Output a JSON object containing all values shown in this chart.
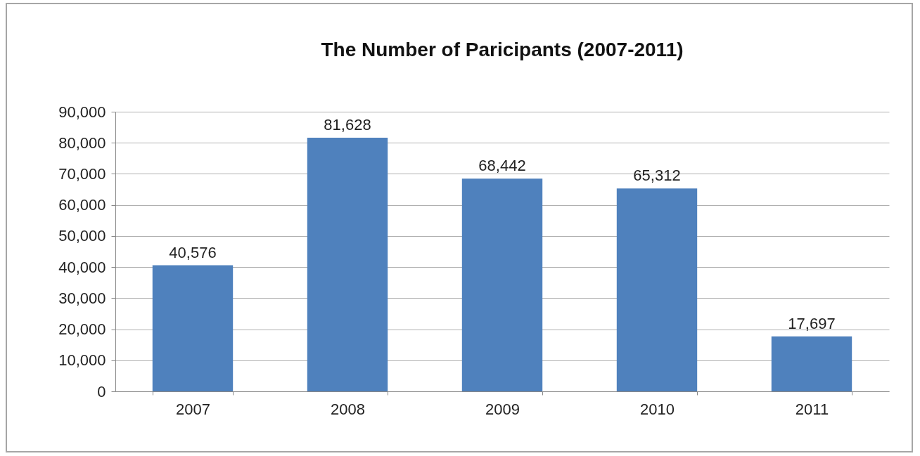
{
  "chart_data": {
    "type": "bar",
    "title": "The Number of Paricipants (2007-2011)",
    "categories": [
      "2007",
      "2008",
      "2009",
      "2010",
      "2011"
    ],
    "values": [
      40576,
      81628,
      68442,
      65312,
      17697
    ],
    "value_labels": [
      "40,576",
      "81,628",
      "68,442",
      "65,312",
      "17,697"
    ],
    "color": "#4f81bd",
    "ylim": [
      0,
      90000
    ],
    "yticks": [
      {
        "value": 0,
        "label": "0"
      },
      {
        "value": 10000,
        "label": "10,000"
      },
      {
        "value": 20000,
        "label": "20,000"
      },
      {
        "value": 30000,
        "label": "30,000"
      },
      {
        "value": 40000,
        "label": "40,000"
      },
      {
        "value": 50000,
        "label": "50,000"
      },
      {
        "value": 60000,
        "label": "60,000"
      },
      {
        "value": 70000,
        "label": "70,000"
      },
      {
        "value": 80000,
        "label": "80,000"
      },
      {
        "value": 90000,
        "label": "90,000"
      }
    ],
    "grid": "y"
  }
}
